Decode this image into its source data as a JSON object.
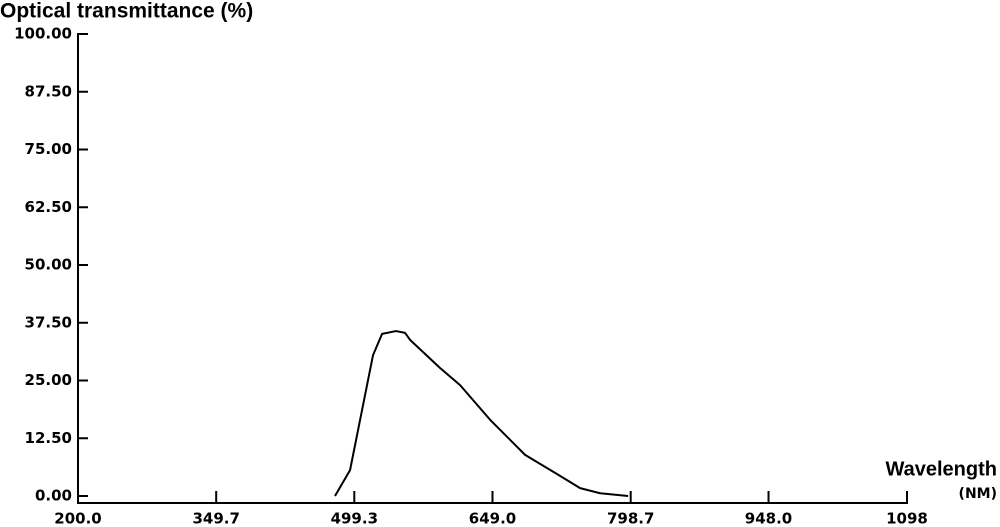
{
  "chart_data": {
    "type": "line",
    "title": "Optical transmittance (%)",
    "x_label": "Wavelength",
    "x_unit": "(NM)",
    "series": [
      {
        "color": "#000000",
        "x": [
          478.4,
          494.7,
          507.7,
          519.6,
          529.4,
          544.5,
          554.3,
          559.7,
          592.2,
          613.9,
          646.4,
          684.3,
          716.8,
          743.9,
          765.6,
          795.9
        ],
        "values": [
          0,
          5.6,
          18.6,
          30.5,
          35.1,
          35.7,
          35.3,
          33.8,
          27.7,
          24.0,
          16.5,
          8.9,
          5.0,
          1.7,
          0.6,
          0
        ]
      }
    ],
    "xlim": [
      200,
      1098
    ],
    "xticks": [
      {
        "value": 200,
        "label": "200.0"
      },
      {
        "value": 349.7,
        "label": "349.7"
      },
      {
        "value": 499.3,
        "label": "499.3"
      },
      {
        "value": 649,
        "label": "649.0"
      },
      {
        "value": 798.7,
        "label": "798.7"
      },
      {
        "value": 948,
        "label": "948.0"
      },
      1098
    ],
    "ylim": [
      0,
      100
    ],
    "yticks": [
      {
        "value": 0,
        "label": "0.00"
      },
      {
        "value": 12.5,
        "label": "12.50"
      },
      {
        "value": 25,
        "label": "25.00"
      },
      {
        "value": 37.5,
        "label": "37.50"
      },
      {
        "value": 50,
        "label": "50.00"
      },
      {
        "value": 62.5,
        "label": "62.50"
      },
      {
        "value": 75,
        "label": "75.00"
      },
      {
        "value": 87.5,
        "label": "87.50"
      },
      {
        "value": 100,
        "label": "100.00"
      }
    ]
  }
}
